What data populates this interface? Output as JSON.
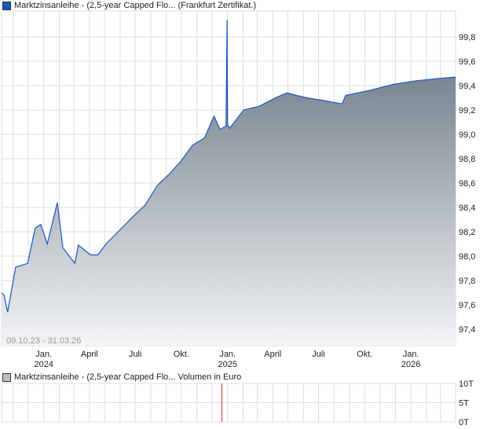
{
  "legend_main": "Marktzinsanleihe - (2,5-year Capped Flo... (Frankfurt Zertifikat.)",
  "legend_volume": "Marktzinsanleihe - (2,5-year Capped Flo... Volumen in Euro",
  "date_range": "09.10.23 - 31.03.26",
  "colors": {
    "line": "#1a56c4",
    "area_top": "#5f6f7b",
    "area_bottom": "#f3f4f6",
    "grid": "#dddddd",
    "volume_bar": "#e03030",
    "volume_swatch": "#bbbbbb"
  },
  "chart_data": [
    {
      "type": "area",
      "x_range": [
        "2023-10-09",
        "2026-03-31"
      ],
      "ylim": [
        97.25,
        99.95
      ],
      "y_ticks": [
        "97,4",
        "97,6",
        "97,8",
        "98,0",
        "98,2",
        "98,4",
        "98,6",
        "98,8",
        "99,0",
        "99,2",
        "99,4",
        "99,6",
        "99,8"
      ],
      "y_tick_values": [
        97.4,
        97.6,
        97.8,
        98.0,
        98.2,
        98.4,
        98.6,
        98.8,
        99.0,
        99.2,
        99.4,
        99.6,
        99.8
      ],
      "x_ticks": [
        {
          "date": "2024-01-01",
          "label": "Jan.",
          "sub": "2024"
        },
        {
          "date": "2024-04-01",
          "label": "April",
          "sub": ""
        },
        {
          "date": "2024-07-01",
          "label": "Juli",
          "sub": ""
        },
        {
          "date": "2024-10-01",
          "label": "Okt.",
          "sub": ""
        },
        {
          "date": "2025-01-01",
          "label": "Jan.",
          "sub": "2025"
        },
        {
          "date": "2025-04-01",
          "label": "April",
          "sub": ""
        },
        {
          "date": "2025-07-01",
          "label": "Juli",
          "sub": ""
        },
        {
          "date": "2025-10-01",
          "label": "Okt.",
          "sub": ""
        },
        {
          "date": "2026-01-01",
          "label": "Jan.",
          "sub": "2026"
        }
      ],
      "grid": true,
      "points": [
        [
          "2023-10-09",
          97.7
        ],
        [
          "2023-10-14",
          97.68
        ],
        [
          "2023-10-21",
          97.54
        ],
        [
          "2023-11-06",
          97.91
        ],
        [
          "2023-11-30",
          97.94
        ],
        [
          "2023-12-15",
          98.23
        ],
        [
          "2023-12-26",
          98.26
        ],
        [
          "2024-01-08",
          98.1
        ],
        [
          "2024-01-28",
          98.44
        ],
        [
          "2024-02-08",
          98.07
        ],
        [
          "2024-03-03",
          97.94
        ],
        [
          "2024-03-10",
          98.09
        ],
        [
          "2024-04-03",
          98.01
        ],
        [
          "2024-04-18",
          98.01
        ],
        [
          "2024-05-04",
          98.1
        ],
        [
          "2024-05-28",
          98.2
        ],
        [
          "2024-06-28",
          98.33
        ],
        [
          "2024-07-21",
          98.42
        ],
        [
          "2024-08-14",
          98.58
        ],
        [
          "2024-09-06",
          98.67
        ],
        [
          "2024-09-30",
          98.78
        ],
        [
          "2024-10-23",
          98.91
        ],
        [
          "2024-11-16",
          98.97
        ],
        [
          "2024-12-05",
          99.15
        ],
        [
          "2024-12-17",
          99.04
        ],
        [
          "2024-12-29",
          99.07
        ],
        [
          "2024-12-30",
          99.49
        ],
        [
          "2024-12-31",
          99.94
        ],
        [
          "2025-01-01",
          99.08
        ],
        [
          "2025-01-05",
          99.05
        ],
        [
          "2025-02-02",
          99.2
        ],
        [
          "2025-03-05",
          99.23
        ],
        [
          "2025-04-06",
          99.3
        ],
        [
          "2025-04-29",
          99.34
        ],
        [
          "2025-06-07",
          99.3
        ],
        [
          "2025-07-08",
          99.28
        ],
        [
          "2025-08-17",
          99.25
        ],
        [
          "2025-08-24",
          99.32
        ],
        [
          "2025-10-10",
          99.36
        ],
        [
          "2025-11-26",
          99.41
        ],
        [
          "2026-01-12",
          99.44
        ],
        [
          "2026-02-28",
          99.46
        ],
        [
          "2026-03-31",
          99.47
        ]
      ]
    },
    {
      "type": "bar",
      "ylim": [
        0,
        10000
      ],
      "y_ticks": [
        "0T",
        "5T",
        "10T"
      ],
      "y_tick_values": [
        0,
        5000,
        10000
      ],
      "grid": true,
      "bars": [
        [
          "2024-12-20",
          10000
        ]
      ]
    }
  ]
}
